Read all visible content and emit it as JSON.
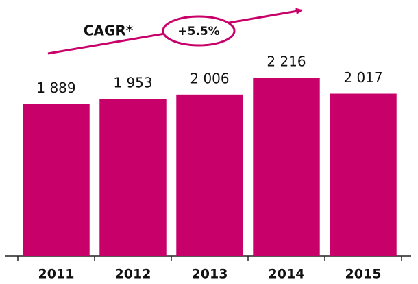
{
  "chart_data": {
    "type": "bar",
    "categories": [
      "2011",
      "2012",
      "2013",
      "2014",
      "2015"
    ],
    "values": [
      1889,
      1953,
      2006,
      2216,
      2017
    ],
    "value_labels": [
      "1 889",
      "1 953",
      "2 006",
      "2 216",
      "2 017"
    ],
    "color": "#c8006a",
    "ylim": [
      0,
      2900
    ],
    "annotations": [
      "CAGR*",
      "+5.5%"
    ]
  }
}
